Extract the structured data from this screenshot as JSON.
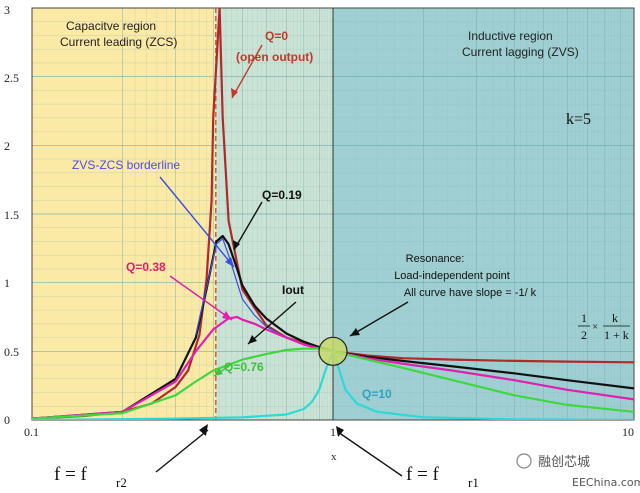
{
  "chart_data": {
    "type": "line",
    "xscale": "log",
    "xlim": [
      0.1,
      10
    ],
    "ylim": [
      0,
      3
    ],
    "xlabel": "x",
    "ylabel": "",
    "x_ticks": [
      "0.1",
      "1",
      "10"
    ],
    "y_ticks": [
      "0",
      "0.5",
      "1",
      "1.5",
      "2",
      "2.5",
      "3"
    ],
    "regions": {
      "capacitive": {
        "line1": "Capacitve region",
        "line2": "Current leading (ZCS)",
        "x_range": [
          0.1,
          0.408
        ],
        "color": "#fbe9a6"
      },
      "capacitive_zvs": {
        "x_range": [
          0.408,
          1
        ],
        "color": "#cbe3d4"
      },
      "inductive": {
        "line1": "Inductive region",
        "line2": "Current lagging (ZVS)",
        "x_range": [
          1,
          10
        ],
        "color": "#9fcfd2"
      }
    },
    "k_label": "k=5",
    "fr2_x": 0.408,
    "fr1_x": 1.0,
    "series": [
      {
        "name": "Q=0",
        "color": "#b02a2a",
        "x": [
          0.1,
          0.15,
          0.2,
          0.25,
          0.3,
          0.33,
          0.36,
          0.38,
          0.395,
          0.4,
          0.42,
          0.43,
          0.45,
          0.5,
          0.6,
          0.7,
          0.8,
          0.9,
          1.0,
          1.3,
          1.7,
          2.5,
          4,
          6,
          10
        ],
        "y": [
          0.01,
          0.03,
          0.06,
          0.12,
          0.24,
          0.36,
          0.62,
          1.02,
          1.6,
          2.2,
          3.0,
          2.2,
          1.45,
          0.95,
          0.69,
          0.6,
          0.56,
          0.53,
          0.5,
          0.47,
          0.45,
          0.44,
          0.43,
          0.425,
          0.42
        ]
      },
      {
        "name": "Q=0.19",
        "color": "#111111",
        "x": [
          0.1,
          0.2,
          0.3,
          0.35,
          0.38,
          0.41,
          0.43,
          0.45,
          0.48,
          0.5,
          0.55,
          0.6,
          0.7,
          0.8,
          0.9,
          1.0,
          1.3,
          1.7,
          2.5,
          4,
          6,
          10
        ],
        "y": [
          0.01,
          0.06,
          0.3,
          0.6,
          0.95,
          1.3,
          1.34,
          1.28,
          1.1,
          0.98,
          0.83,
          0.74,
          0.63,
          0.57,
          0.53,
          0.5,
          0.46,
          0.43,
          0.39,
          0.34,
          0.29,
          0.23
        ]
      },
      {
        "name": "ZVS-ZCS borderline",
        "color": "#3a4fe0",
        "x": [
          0.35,
          0.38,
          0.41,
          0.43,
          0.45,
          0.48,
          0.5,
          0.55,
          0.6,
          0.7,
          0.8,
          0.9,
          1.0
        ],
        "y": [
          0.62,
          0.96,
          1.28,
          1.32,
          1.2,
          1.0,
          0.88,
          0.76,
          0.68,
          0.6,
          0.55,
          0.52,
          0.5
        ]
      },
      {
        "name": "Q=0.38",
        "color": "#e020b0",
        "x": [
          0.1,
          0.2,
          0.3,
          0.35,
          0.4,
          0.45,
          0.48,
          0.5,
          0.55,
          0.6,
          0.7,
          0.8,
          0.9,
          1.0,
          1.3,
          1.7,
          2.5,
          4,
          6,
          10
        ],
        "y": [
          0.01,
          0.06,
          0.28,
          0.5,
          0.66,
          0.74,
          0.75,
          0.73,
          0.7,
          0.66,
          0.6,
          0.55,
          0.52,
          0.5,
          0.45,
          0.41,
          0.36,
          0.29,
          0.22,
          0.15
        ]
      },
      {
        "name": "Q=0.76",
        "color": "#3ed83e",
        "x": [
          0.1,
          0.2,
          0.3,
          0.35,
          0.4,
          0.5,
          0.6,
          0.7,
          0.8,
          0.9,
          1.0,
          1.3,
          1.7,
          2.5,
          4,
          6,
          10
        ],
        "y": [
          0.01,
          0.05,
          0.18,
          0.28,
          0.36,
          0.44,
          0.48,
          0.51,
          0.52,
          0.52,
          0.5,
          0.44,
          0.38,
          0.29,
          0.18,
          0.11,
          0.06
        ]
      },
      {
        "name": "Q=10",
        "color": "#2fd8d8",
        "x": [
          0.1,
          0.3,
          0.5,
          0.7,
          0.8,
          0.85,
          0.9,
          0.95,
          1.0,
          1.05,
          1.1,
          1.2,
          1.4,
          2,
          4,
          10
        ],
        "y": [
          0.0,
          0.01,
          0.02,
          0.04,
          0.08,
          0.13,
          0.22,
          0.38,
          0.5,
          0.36,
          0.22,
          0.12,
          0.06,
          0.02,
          0.005,
          0.0
        ]
      }
    ],
    "annotations": {
      "q0": [
        "Q=0",
        "(open output)"
      ],
      "q019": "Q=0.19",
      "q038": "Q=0.38",
      "q076": "Q=0.76",
      "q10": "Q=10",
      "iout": "Iout",
      "borderline": "ZVS-ZCS borderline",
      "resonance": [
        "Resonance:",
        "Load-independent point",
        "All curve have slope = -1/ k"
      ],
      "formula": {
        "a": "1",
        "b": "2",
        "c": "k",
        "d": "1 + k",
        "times": "×"
      },
      "fr2": {
        "main": "f = f",
        "sub": "r2"
      },
      "fr1": {
        "main": "f = f",
        "sub": "r1"
      }
    }
  },
  "watermark": {
    "brand": "融创芯城",
    "site": "EEChina.com"
  }
}
